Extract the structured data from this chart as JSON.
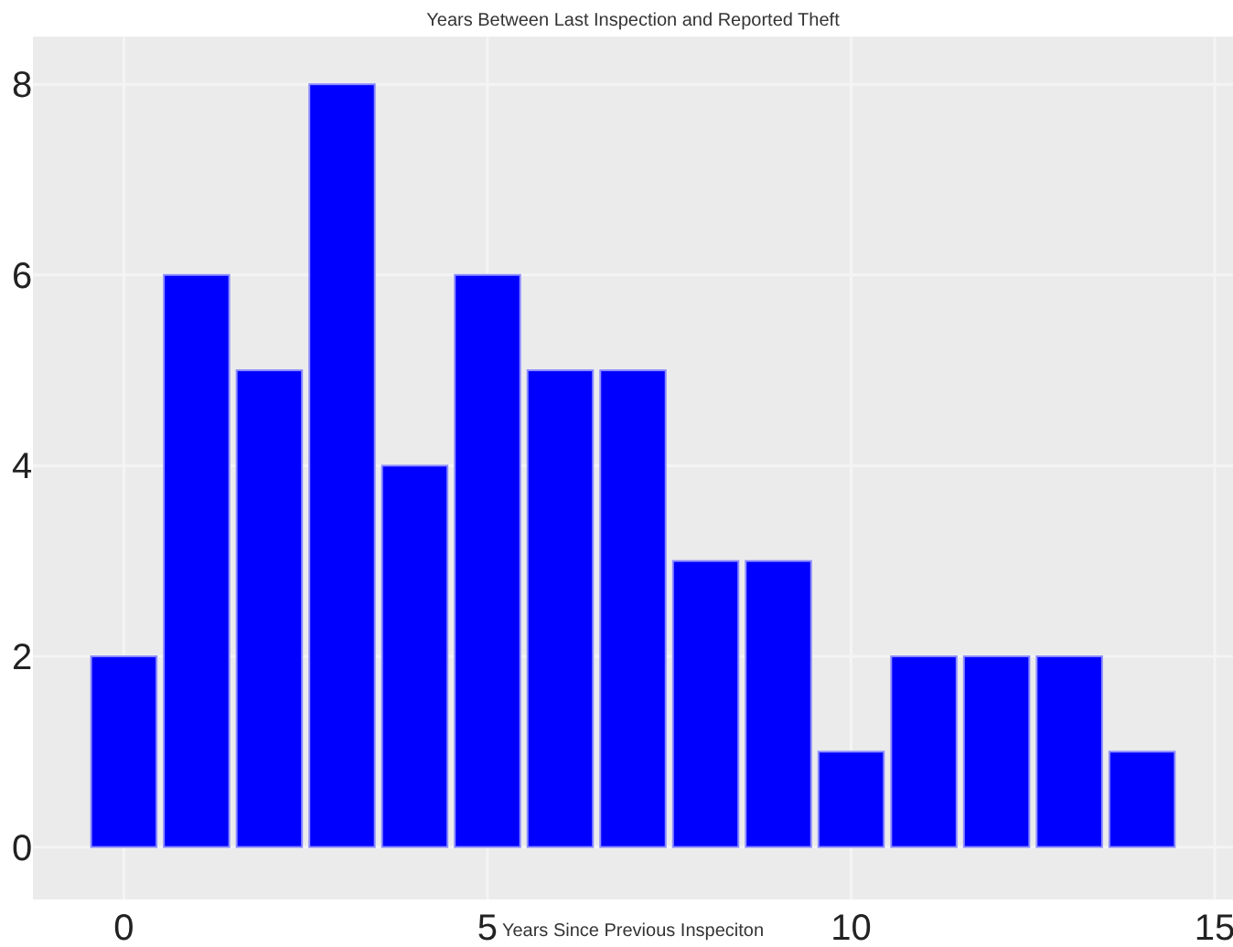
{
  "chart_data": {
    "type": "histogram",
    "title": "Years Between Last Inspection and Reported Theft",
    "xlabel": "Years Since Previous Inspeciton",
    "bins": [
      -0.5,
      0.5,
      1.5,
      2.5,
      3.5,
      4.5,
      5.5,
      6.5,
      7.5,
      8.5,
      9.5,
      10.5,
      11.5,
      12.5,
      13.5,
      14.5
    ],
    "values": [
      2,
      6,
      5,
      8,
      4,
      6,
      5,
      5,
      3,
      3,
      1,
      2,
      2,
      2,
      1
    ],
    "color": "#0000ff",
    "xlim": [
      -1.25,
      15.25
    ],
    "xticks": [
      0,
      5,
      10,
      15
    ],
    "ylim": [
      -0.55,
      8.5
    ],
    "yticks": [
      0,
      2,
      4,
      6,
      8
    ],
    "grid": true
  }
}
